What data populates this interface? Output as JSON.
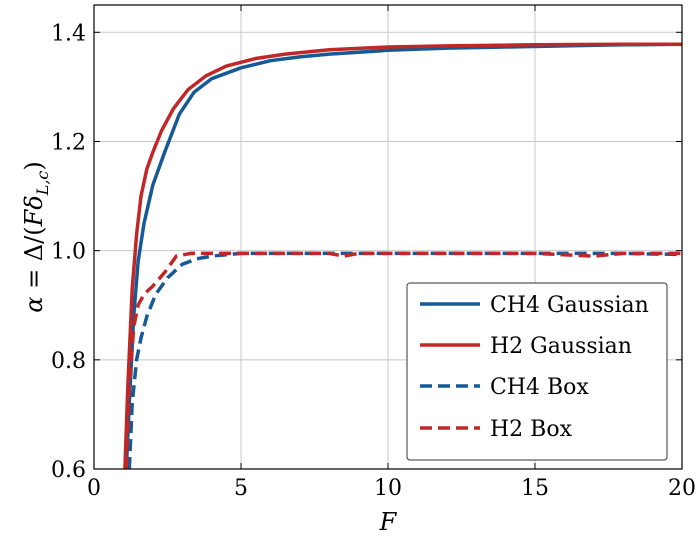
{
  "chart_data": {
    "type": "line",
    "xlabel": "F",
    "ylabel": "α = Δ/(Fδ_{L,c})",
    "xlim": [
      0,
      20
    ],
    "ylim": [
      0.6,
      1.45
    ],
    "xticks": [
      0,
      5,
      10,
      15,
      20
    ],
    "yticks": [
      0.6,
      0.8,
      1.0,
      1.2,
      1.4
    ],
    "grid": true,
    "legend_position": "lower-right",
    "series": [
      {
        "name": "CH4 Gaussian",
        "color": "#155a96",
        "dash": "solid",
        "x": [
          1.1,
          1.2,
          1.35,
          1.5,
          1.7,
          2.0,
          2.4,
          2.9,
          3.4,
          4.0,
          5.0,
          6.0,
          7.0,
          8.0,
          10.0,
          12.0,
          14.0,
          16.0,
          18.0,
          20.0
        ],
        "y": [
          0.6,
          0.72,
          0.88,
          0.98,
          1.05,
          1.12,
          1.18,
          1.25,
          1.29,
          1.315,
          1.335,
          1.348,
          1.355,
          1.36,
          1.367,
          1.371,
          1.373,
          1.375,
          1.377,
          1.378
        ]
      },
      {
        "name": "H2 Gaussian",
        "color": "#c02828",
        "dash": "solid",
        "x": [
          1.05,
          1.15,
          1.3,
          1.45,
          1.6,
          1.8,
          2.0,
          2.3,
          2.7,
          3.2,
          3.8,
          4.5,
          5.5,
          6.5,
          8.0,
          10.0,
          12.0,
          15.0,
          18.0,
          20.0
        ],
        "y": [
          0.6,
          0.75,
          0.93,
          1.03,
          1.1,
          1.15,
          1.18,
          1.22,
          1.26,
          1.295,
          1.32,
          1.338,
          1.352,
          1.36,
          1.368,
          1.373,
          1.375,
          1.377,
          1.378,
          1.378
        ]
      },
      {
        "name": "CH4 Box",
        "color": "#155a96",
        "dash": "dashed",
        "x": [
          1.2,
          1.3,
          1.45,
          1.6,
          1.8,
          2.1,
          2.5,
          3.0,
          3.5,
          4.0,
          5.0,
          6.0,
          8.0,
          10.0,
          12.0,
          15.0,
          18.0,
          20.0
        ],
        "y": [
          0.6,
          0.72,
          0.8,
          0.84,
          0.88,
          0.92,
          0.95,
          0.975,
          0.985,
          0.99,
          0.995,
          0.995,
          0.995,
          0.995,
          0.995,
          0.995,
          0.995,
          0.993
        ]
      },
      {
        "name": "H2 Box",
        "color": "#c02828",
        "dash": "dashed",
        "x": [
          1.1,
          1.2,
          1.35,
          1.5,
          1.7,
          2.0,
          2.4,
          2.8,
          3.3,
          4.0,
          5.0,
          6.0,
          8.0,
          8.5,
          9.0,
          10.0,
          12.0,
          15.0,
          17.0,
          18.0,
          20.0
        ],
        "y": [
          0.6,
          0.75,
          0.86,
          0.9,
          0.92,
          0.935,
          0.96,
          0.99,
          0.995,
          0.995,
          0.995,
          0.995,
          0.995,
          0.99,
          0.995,
          0.995,
          0.995,
          0.995,
          0.99,
          0.995,
          0.995
        ]
      }
    ]
  }
}
